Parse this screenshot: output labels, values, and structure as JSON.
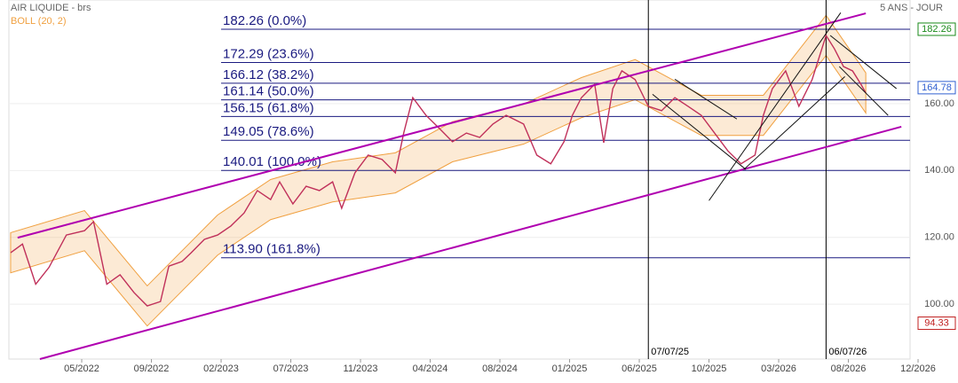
{
  "chart_data": {
    "type": "line",
    "title": "AIR LIQUIDE - brs",
    "period": "5 ANS - JOUR",
    "xlim": [
      -1.045,
      11.885
    ],
    "ylim": [
      83.6,
      191
    ],
    "xticks": [
      {
        "value": 0,
        "label": "05/2022"
      },
      {
        "value": 1,
        "label": "09/2022"
      },
      {
        "value": 2,
        "label": "02/2023"
      },
      {
        "value": 3,
        "label": "07/2023"
      },
      {
        "value": 4,
        "label": "11/2023"
      },
      {
        "value": 5,
        "label": "04/2024"
      },
      {
        "value": 6,
        "label": "08/2024"
      },
      {
        "value": 7,
        "label": "01/2025"
      },
      {
        "value": 8,
        "label": "06/2025"
      },
      {
        "value": 9,
        "label": "10/2025"
      },
      {
        "value": 10,
        "label": "03/2026"
      },
      {
        "value": 11,
        "label": "08/2026"
      },
      {
        "value": 12,
        "label": "12/2026"
      }
    ],
    "yticks": [
      {
        "value": 100,
        "label": "100.00"
      },
      {
        "value": 120,
        "label": "120.00"
      },
      {
        "value": 140,
        "label": "140.00"
      },
      {
        "value": 160,
        "label": "160.00"
      }
    ],
    "grid": true,
    "series": [
      {
        "color": "#c0305a",
        "x": [
          -1.02,
          -0.85,
          -0.66,
          -0.47,
          -0.22,
          0.04,
          0.17,
          0.36,
          0.55,
          0.75,
          0.94,
          1.13,
          1.25,
          1.44,
          1.57,
          1.76,
          1.95,
          2.14,
          2.33,
          2.52,
          2.71,
          2.84,
          3.03,
          3.22,
          3.41,
          3.6,
          3.73,
          3.92,
          4.11,
          4.31,
          4.5,
          4.62,
          4.75,
          4.94,
          5.13,
          5.32,
          5.52,
          5.71,
          5.9,
          6.09,
          6.34,
          6.53,
          6.73,
          6.92,
          7.04,
          7.17,
          7.36,
          7.49,
          7.62,
          7.75,
          7.94,
          8.13,
          8.32,
          8.51,
          8.7,
          8.89,
          9.08,
          9.27,
          9.46,
          9.66,
          9.78,
          9.91,
          10.1,
          10.29,
          10.48,
          10.68,
          10.8,
          10.93,
          11.06,
          11.18,
          11.25
        ],
        "values": [
          115.4,
          118,
          106,
          111,
          120.7,
          122,
          124.7,
          106,
          108.8,
          103.5,
          99.5,
          100.8,
          111.4,
          112.8,
          115.4,
          119.4,
          120.7,
          123.4,
          127.3,
          134,
          131.3,
          136.6,
          130,
          135.3,
          134,
          136.6,
          128.7,
          139.3,
          144.6,
          143.3,
          139.3,
          151.2,
          161.8,
          156.5,
          152.6,
          148.6,
          151.2,
          149.9,
          153.9,
          156.5,
          153.9,
          144.6,
          142,
          148.6,
          156.5,
          161.8,
          165.8,
          148.3,
          164.5,
          169.8,
          167.2,
          159.2,
          157.9,
          161.8,
          159.2,
          156.5,
          151.2,
          145.9,
          142,
          144.6,
          156.5,
          164.5,
          169.8,
          159.2,
          167.2,
          180.4,
          176.4,
          171.1,
          169.8,
          165.8,
          163.2
        ]
      }
    ],
    "bollinger": {
      "label": "BOLL (20, 2)",
      "color": "#f0a040",
      "x": [
        -1.02,
        0.04,
        0.94,
        1.95,
        2.71,
        3.6,
        4.5,
        5.32,
        6.34,
        7.17,
        7.94,
        8.89,
        9.78,
        10.68,
        11.25
      ],
      "upper": [
        121.4,
        128,
        105.5,
        126.7,
        137.3,
        142.6,
        145.3,
        154.6,
        159.9,
        167.8,
        173.2,
        162.5,
        162.5,
        186.4,
        169.2
      ],
      "lower": [
        109.4,
        116,
        93.5,
        114.7,
        125.3,
        130.6,
        133.3,
        142.6,
        147.9,
        155.8,
        161.2,
        150.5,
        150.5,
        174.4,
        157.2
      ]
    },
    "fib_levels": [
      {
        "value": 182.26,
        "label": "182.26  (0.0%)"
      },
      {
        "value": 172.29,
        "label": "172.29  (23.6%)"
      },
      {
        "value": 166.12,
        "label": "166.12  (38.2%)"
      },
      {
        "value": 161.14,
        "label": "161.14  (50.0%)"
      },
      {
        "value": 156.15,
        "label": "156.15  (61.8%)"
      },
      {
        "value": 149.05,
        "label": "149.05  (78.6%)"
      },
      {
        "value": 140.01,
        "label": "140.01  (100.0%)"
      },
      {
        "value": 113.9,
        "label": "113.90  (161.8%)"
      }
    ],
    "fib_start": 2.0,
    "channel_color": "#b000b0",
    "channel_lines": [
      {
        "x": [
          -0.92,
          11.25
        ],
        "y": [
          119.9,
          187
        ]
      },
      {
        "x": [
          -0.6,
          11.76
        ],
        "y": [
          83.6,
          153.1
        ]
      }
    ],
    "trend_lines": [
      {
        "x": [
          8.51,
          9.4
        ],
        "y": [
          167.3,
          155.4
        ]
      },
      {
        "x": [
          8.19,
          9.53
        ],
        "y": [
          162.8,
          140.3
        ]
      },
      {
        "x": [
          9.0,
          10.89
        ],
        "y": [
          131,
          187.2
        ]
      },
      {
        "x": [
          9.5,
          10.95
        ],
        "y": [
          140.3,
          168.1
        ]
      },
      {
        "x": [
          10.74,
          11.69
        ],
        "y": [
          180.4,
          164.5
        ]
      },
      {
        "x": [
          10.87,
          11.57
        ],
        "y": [
          171.1,
          156.5
        ]
      }
    ],
    "markers": [
      {
        "x": 8.13,
        "label": "07/07/25"
      },
      {
        "x": 10.68,
        "label": "06/07/26"
      }
    ],
    "price_tags": [
      {
        "value": 182.26,
        "color": "#1a8a1a"
      },
      {
        "value": 164.78,
        "color": "#3060d0"
      },
      {
        "value": 94.33,
        "color": "#c02020"
      }
    ]
  }
}
